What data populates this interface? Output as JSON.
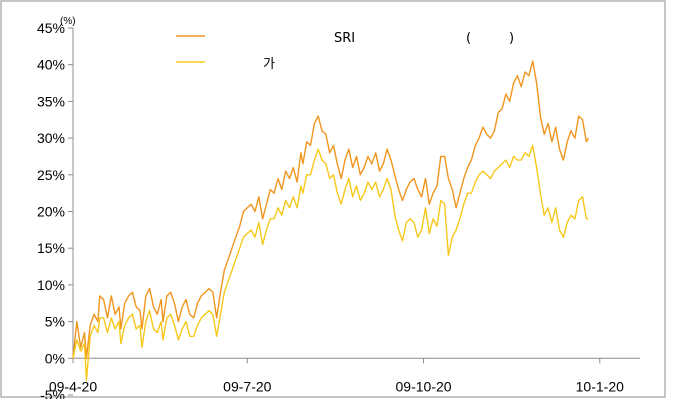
{
  "chart_data": {
    "type": "line",
    "title": "",
    "xlabel": "",
    "ylabel": "",
    "y_unit": "(%)",
    "ylim": [
      -5,
      45
    ],
    "yticks": [
      -5,
      0,
      5,
      10,
      15,
      20,
      25,
      30,
      35,
      40,
      45
    ],
    "ytick_labels": [
      "-5%",
      "0%",
      "5%",
      "10%",
      "15%",
      "20%",
      "25%",
      "30%",
      "35%",
      "40%",
      "45%"
    ],
    "x_dates": [
      "2009-04-20",
      "2010-02-10"
    ],
    "xticks": [
      "2009-04-20",
      "2009-07-20",
      "2009-10-20",
      "2010-01-20"
    ],
    "xtick_labels": [
      "09-4-20",
      "09-7-20",
      "09-10-20",
      "10-1-20"
    ],
    "grid": false,
    "legend_position": "top-center",
    "legend": {
      "row1": [
        "SRI",
        "(",
        ")"
      ],
      "row2": "가"
    },
    "series": [
      {
        "color": "#F0951E",
        "values": [
          [
            0,
            0.0
          ],
          [
            2,
            5.0
          ],
          [
            4,
            1.5
          ],
          [
            6,
            3.5
          ],
          [
            7,
            0.0
          ],
          [
            9,
            4.5
          ],
          [
            11,
            6.0
          ],
          [
            13,
            5.0
          ],
          [
            14,
            8.5
          ],
          [
            16,
            8.0
          ],
          [
            18,
            5.5
          ],
          [
            20,
            8.5
          ],
          [
            22,
            6.0
          ],
          [
            24,
            7.0
          ],
          [
            25,
            4.0
          ],
          [
            27,
            7.5
          ],
          [
            29,
            8.5
          ],
          [
            31,
            9.0
          ],
          [
            33,
            7.0
          ],
          [
            35,
            6.5
          ],
          [
            36,
            4.0
          ],
          [
            38,
            8.5
          ],
          [
            40,
            9.5
          ],
          [
            42,
            7.0
          ],
          [
            44,
            6.0
          ],
          [
            46,
            8.0
          ],
          [
            47,
            5.0
          ],
          [
            49,
            8.5
          ],
          [
            51,
            9.0
          ],
          [
            53,
            7.5
          ],
          [
            55,
            5.0
          ],
          [
            57,
            7.0
          ],
          [
            59,
            8.0
          ],
          [
            61,
            6.0
          ],
          [
            63,
            5.5
          ],
          [
            65,
            7.5
          ],
          [
            67,
            8.5
          ],
          [
            69,
            9.0
          ],
          [
            71,
            9.5
          ],
          [
            73,
            9.0
          ],
          [
            75,
            5.5
          ],
          [
            77,
            9.0
          ],
          [
            79,
            12.0
          ],
          [
            81,
            13.5
          ],
          [
            83,
            15.0
          ],
          [
            85,
            16.5
          ],
          [
            87,
            18.0
          ],
          [
            89,
            20.0
          ],
          [
            91,
            20.5
          ],
          [
            93,
            21.0
          ],
          [
            95,
            20.0
          ],
          [
            97,
            22.0
          ],
          [
            99,
            19.0
          ],
          [
            101,
            21.0
          ],
          [
            103,
            23.0
          ],
          [
            105,
            22.5
          ],
          [
            107,
            24.5
          ],
          [
            109,
            23.0
          ],
          [
            111,
            25.5
          ],
          [
            113,
            24.5
          ],
          [
            115,
            26.0
          ],
          [
            117,
            24.0
          ],
          [
            119,
            28.0
          ],
          [
            120,
            26.5
          ],
          [
            122,
            29.5
          ],
          [
            124,
            29.0
          ],
          [
            126,
            32.0
          ],
          [
            128,
            33.0
          ],
          [
            130,
            31.0
          ],
          [
            132,
            30.5
          ],
          [
            134,
            28.0
          ],
          [
            136,
            29.0
          ],
          [
            138,
            26.5
          ],
          [
            140,
            24.5
          ],
          [
            142,
            27.0
          ],
          [
            144,
            28.5
          ],
          [
            146,
            26.0
          ],
          [
            148,
            27.5
          ],
          [
            150,
            25.0
          ],
          [
            152,
            26.0
          ],
          [
            154,
            27.5
          ],
          [
            156,
            26.5
          ],
          [
            158,
            28.0
          ],
          [
            160,
            25.5
          ],
          [
            162,
            26.5
          ],
          [
            164,
            28.5
          ],
          [
            166,
            27.0
          ],
          [
            168,
            25.0
          ],
          [
            170,
            23.0
          ],
          [
            172,
            21.5
          ],
          [
            174,
            23.0
          ],
          [
            176,
            24.0
          ],
          [
            178,
            24.5
          ],
          [
            180,
            23.0
          ],
          [
            182,
            22.0
          ],
          [
            184,
            24.5
          ],
          [
            186,
            21.0
          ],
          [
            188,
            22.5
          ],
          [
            190,
            23.5
          ],
          [
            192,
            27.5
          ],
          [
            194,
            27.5
          ],
          [
            196,
            24.5
          ],
          [
            198,
            23.0
          ],
          [
            200,
            20.5
          ],
          [
            202,
            22.5
          ],
          [
            204,
            24.5
          ],
          [
            206,
            26.0
          ],
          [
            208,
            27.0
          ],
          [
            210,
            29.0
          ],
          [
            212,
            30.0
          ],
          [
            214,
            31.5
          ],
          [
            216,
            30.5
          ],
          [
            218,
            30.0
          ],
          [
            220,
            31.0
          ],
          [
            222,
            33.5
          ],
          [
            224,
            34.0
          ],
          [
            226,
            36.0
          ],
          [
            228,
            35.0
          ],
          [
            230,
            37.5
          ],
          [
            232,
            38.5
          ],
          [
            234,
            37.0
          ],
          [
            236,
            39.0
          ],
          [
            238,
            38.5
          ],
          [
            240,
            40.5
          ],
          [
            242,
            37.5
          ],
          [
            244,
            33.0
          ],
          [
            246,
            30.5
          ],
          [
            248,
            32.0
          ],
          [
            250,
            29.5
          ],
          [
            252,
            31.5
          ],
          [
            254,
            28.5
          ],
          [
            256,
            27.0
          ],
          [
            258,
            29.5
          ],
          [
            260,
            31.0
          ],
          [
            262,
            30.0
          ],
          [
            264,
            33.0
          ],
          [
            266,
            32.5
          ],
          [
            268,
            29.5
          ],
          [
            269,
            30.0
          ]
        ]
      },
      {
        "color": "#F7C81B",
        "values": [
          [
            0,
            0.0
          ],
          [
            2,
            2.5
          ],
          [
            4,
            1.0
          ],
          [
            6,
            2.0
          ],
          [
            7,
            -3.0
          ],
          [
            9,
            3.0
          ],
          [
            11,
            4.5
          ],
          [
            13,
            3.5
          ],
          [
            14,
            5.5
          ],
          [
            16,
            5.5
          ],
          [
            18,
            3.5
          ],
          [
            20,
            5.5
          ],
          [
            22,
            4.0
          ],
          [
            24,
            5.0
          ],
          [
            25,
            2.0
          ],
          [
            27,
            4.5
          ],
          [
            29,
            5.5
          ],
          [
            31,
            6.0
          ],
          [
            33,
            4.0
          ],
          [
            35,
            4.5
          ],
          [
            36,
            1.5
          ],
          [
            38,
            5.0
          ],
          [
            40,
            6.5
          ],
          [
            42,
            4.0
          ],
          [
            44,
            3.5
          ],
          [
            46,
            5.0
          ],
          [
            47,
            2.5
          ],
          [
            49,
            5.5
          ],
          [
            51,
            6.0
          ],
          [
            53,
            4.5
          ],
          [
            55,
            2.5
          ],
          [
            57,
            4.0
          ],
          [
            59,
            5.0
          ],
          [
            61,
            3.0
          ],
          [
            63,
            3.0
          ],
          [
            65,
            4.5
          ],
          [
            67,
            5.5
          ],
          [
            69,
            6.0
          ],
          [
            71,
            6.5
          ],
          [
            73,
            6.0
          ],
          [
            75,
            3.0
          ],
          [
            77,
            6.0
          ],
          [
            79,
            9.0
          ],
          [
            81,
            10.5
          ],
          [
            83,
            12.0
          ],
          [
            85,
            13.5
          ],
          [
            87,
            15.0
          ],
          [
            89,
            16.5
          ],
          [
            91,
            17.0
          ],
          [
            93,
            17.5
          ],
          [
            95,
            16.5
          ],
          [
            97,
            18.5
          ],
          [
            99,
            15.5
          ],
          [
            101,
            17.5
          ],
          [
            103,
            19.0
          ],
          [
            105,
            19.0
          ],
          [
            107,
            20.5
          ],
          [
            109,
            19.5
          ],
          [
            111,
            21.5
          ],
          [
            113,
            20.5
          ],
          [
            115,
            22.0
          ],
          [
            117,
            20.5
          ],
          [
            119,
            23.5
          ],
          [
            120,
            22.5
          ],
          [
            122,
            25.0
          ],
          [
            124,
            25.0
          ],
          [
            126,
            27.0
          ],
          [
            128,
            28.5
          ],
          [
            130,
            27.0
          ],
          [
            132,
            26.5
          ],
          [
            134,
            24.5
          ],
          [
            136,
            25.0
          ],
          [
            138,
            22.5
          ],
          [
            140,
            21.0
          ],
          [
            142,
            23.0
          ],
          [
            144,
            24.5
          ],
          [
            146,
            22.0
          ],
          [
            148,
            23.5
          ],
          [
            150,
            21.5
          ],
          [
            152,
            22.5
          ],
          [
            154,
            24.0
          ],
          [
            156,
            23.0
          ],
          [
            158,
            24.0
          ],
          [
            160,
            22.0
          ],
          [
            162,
            23.0
          ],
          [
            164,
            24.5
          ],
          [
            166,
            23.0
          ],
          [
            168,
            19.5
          ],
          [
            170,
            17.5
          ],
          [
            172,
            16.0
          ],
          [
            174,
            18.5
          ],
          [
            176,
            19.0
          ],
          [
            178,
            18.5
          ],
          [
            180,
            16.5
          ],
          [
            182,
            17.5
          ],
          [
            184,
            20.5
          ],
          [
            186,
            17.0
          ],
          [
            188,
            19.0
          ],
          [
            190,
            18.0
          ],
          [
            192,
            21.5
          ],
          [
            194,
            21.0
          ],
          [
            196,
            14.0
          ],
          [
            198,
            16.5
          ],
          [
            200,
            17.5
          ],
          [
            202,
            19.0
          ],
          [
            204,
            21.0
          ],
          [
            206,
            22.5
          ],
          [
            208,
            22.5
          ],
          [
            210,
            24.0
          ],
          [
            212,
            25.0
          ],
          [
            214,
            25.5
          ],
          [
            216,
            25.0
          ],
          [
            218,
            24.5
          ],
          [
            220,
            25.5
          ],
          [
            222,
            26.0
          ],
          [
            224,
            26.5
          ],
          [
            226,
            27.0
          ],
          [
            228,
            26.0
          ],
          [
            230,
            27.5
          ],
          [
            232,
            27.0
          ],
          [
            234,
            27.0
          ],
          [
            236,
            28.0
          ],
          [
            238,
            27.5
          ],
          [
            240,
            29.0
          ],
          [
            242,
            26.0
          ],
          [
            244,
            22.5
          ],
          [
            246,
            19.5
          ],
          [
            248,
            20.5
          ],
          [
            250,
            18.5
          ],
          [
            252,
            20.5
          ],
          [
            254,
            17.5
          ],
          [
            256,
            16.5
          ],
          [
            258,
            18.5
          ],
          [
            260,
            19.5
          ],
          [
            262,
            19.0
          ],
          [
            264,
            21.5
          ],
          [
            266,
            22.0
          ],
          [
            268,
            19.0
          ],
          [
            269,
            19.0
          ]
        ]
      }
    ]
  }
}
